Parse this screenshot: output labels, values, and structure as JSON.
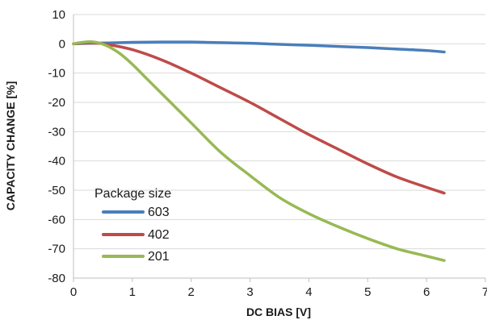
{
  "chart_data": {
    "type": "line",
    "title": "",
    "xlabel": "DC BIAS [V]",
    "ylabel": "CAPACITY CHANGE [%]",
    "xlim": [
      0,
      7
    ],
    "ylim": [
      -80,
      10
    ],
    "xticks": [
      0,
      1,
      2,
      3,
      4,
      5,
      6,
      7
    ],
    "yticks": [
      10,
      0,
      -10,
      -20,
      -30,
      -40,
      -50,
      -60,
      -70,
      -80
    ],
    "grid": "horizontal",
    "legend_title": "Package size",
    "legend_position": "bottom-left",
    "series": [
      {
        "name": "603",
        "color": "#4a7ebb",
        "x": [
          0,
          0.3,
          0.6,
          1.0,
          1.5,
          2.0,
          2.5,
          3.0,
          3.5,
          4.0,
          4.5,
          5.0,
          5.5,
          6.0,
          6.3
        ],
        "y": [
          0,
          0.2,
          0.3,
          0.5,
          0.6,
          0.6,
          0.4,
          0.2,
          -0.2,
          -0.5,
          -0.9,
          -1.3,
          -1.8,
          -2.3,
          -2.8
        ]
      },
      {
        "name": "402",
        "color": "#be4b48",
        "x": [
          0,
          0.2,
          0.4,
          0.6,
          1.0,
          1.5,
          2.0,
          2.5,
          3.0,
          3.5,
          4.0,
          4.5,
          5.0,
          5.5,
          6.0,
          6.3
        ],
        "y": [
          0,
          0.3,
          0.2,
          -0.3,
          -2,
          -5.5,
          -10,
          -15,
          -20,
          -25.5,
          -31,
          -36,
          -41,
          -45.5,
          -49,
          -51
        ]
      },
      {
        "name": "201",
        "color": "#98b954",
        "x": [
          0,
          0.15,
          0.3,
          0.45,
          0.6,
          0.8,
          1.0,
          1.25,
          1.5,
          2.0,
          2.5,
          3.0,
          3.5,
          4.0,
          4.5,
          5.0,
          5.5,
          6.0,
          6.3
        ],
        "y": [
          0,
          0.5,
          0.7,
          0.2,
          -1,
          -3.5,
          -7,
          -12,
          -17,
          -27,
          -37,
          -45,
          -52.5,
          -58,
          -62.5,
          -66.5,
          -70,
          -72.5,
          -74
        ]
      }
    ]
  }
}
